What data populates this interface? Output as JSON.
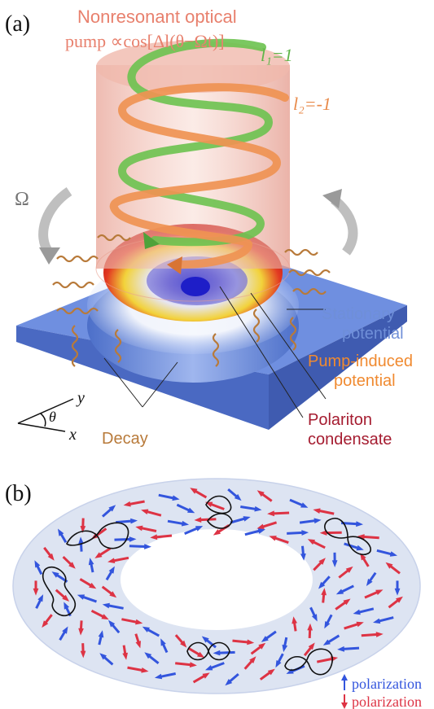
{
  "panel_a": {
    "label": "(a)",
    "pump_line1": "Nonresonant optical",
    "pump_line2": "pump ∝cos[Δl(θ−Ωt)]",
    "l1": "l₁=1",
    "l2": "l₂=-1",
    "omega": "Ω",
    "stationary_1": "Stationary",
    "stationary_2": "potential",
    "pump_induced_1": "Pump-induced",
    "pump_induced_2": "potential",
    "polariton_1": "Polariton",
    "polariton_2": "condensate",
    "decay": "Decay",
    "axis_y": "y",
    "axis_x": "x",
    "axis_theta": "θ",
    "colors": {
      "pump_text": "#e8806d",
      "l1": "#5fb548",
      "l2": "#e88a4a",
      "stationary": "#6f8fd8",
      "pump_induced": "#f08a30",
      "polariton": "#a51c30",
      "decay": "#b87a3a",
      "substrate": "#5b7fd6"
    }
  },
  "panel_b": {
    "label": "(b)",
    "legend_blue": "polarization",
    "legend_red": "polarization",
    "colors": {
      "blue": "#3355dd",
      "red": "#dd3344",
      "ring": "#dde4f2"
    }
  }
}
